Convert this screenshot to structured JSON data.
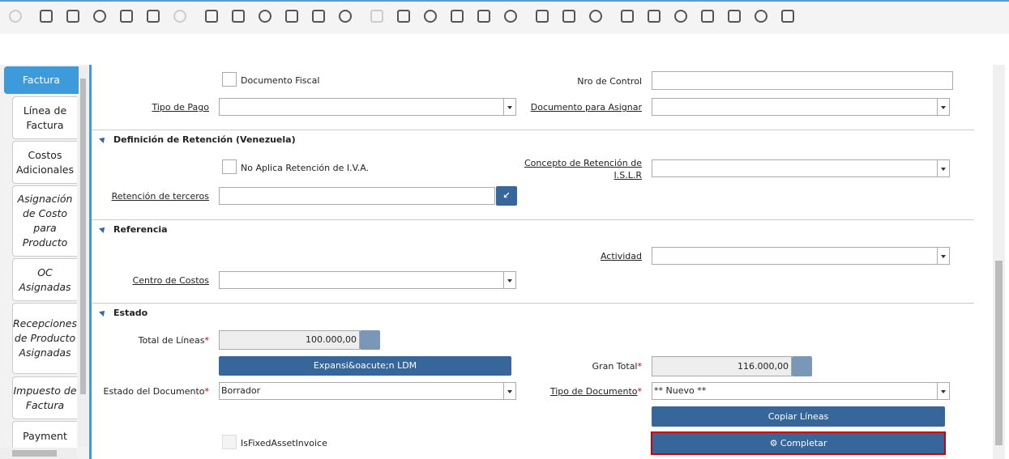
{
  "tabs": [
    "Factura",
    "Línea de Factura",
    "Costos Adicionales",
    "Asignación de Costo para Producto",
    "OC Asignadas",
    "Recepciones de Producto Asignadas",
    "Impuesto de Factura",
    "Payment"
  ],
  "required_mark": "*",
  "sections": [
    "Definición de Retención (Venezuela)",
    "Referencia",
    "Estado"
  ],
  "form": {
    "documento_fiscal": "Documento Fiscal",
    "nro_control": "Nro de Control",
    "tipo_pago": "Tipo de Pago",
    "documento_asignar": "Documento para Asignar",
    "no_aplica_iva": "No Aplica Retención de I.V.A.",
    "concepto_islr": "Concepto de Retención de I.S.L.R",
    "retencion_terceros": "Retención de terceros",
    "actividad": "Actividad",
    "centro_costos": "Centro de Costos",
    "total_lineas": {
      "label": "Total de Líneas",
      "value": "100.000,00"
    },
    "expansion_button": "Expansi&oacute;n LDM",
    "gran_total": {
      "label": "Gran Total",
      "value": "116.000,00"
    },
    "estado_documento": {
      "label": "Estado del Documento",
      "value": "Borrador"
    },
    "tipo_documento": {
      "label": "Tipo de Documento",
      "value": "** Nuevo **"
    },
    "copiar_lineas": "Copiar Líneas",
    "is_fixed_asset": "IsFixedAssetInvoice",
    "completar": "Completar"
  }
}
